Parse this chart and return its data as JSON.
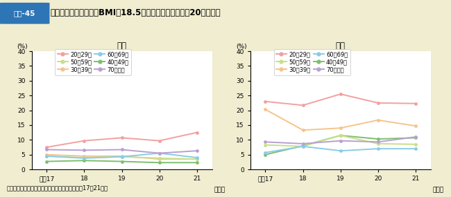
{
  "title_box": "図表-45",
  "title_text": "痩身（低体重）の者（BMI＜18.5）の割合の年次推移（20歳以上）",
  "source": "資料：厧生労働省『国民健康・栄養調査』（平成17～21年）",
  "x_labels": [
    "平成17",
    "18",
    "19",
    "20",
    "21"
  ],
  "male_title": "男性",
  "female_title": "女性",
  "age_groups": [
    "20～29歳",
    "30～39歳",
    "40～49歳",
    "50～59歳",
    "60～69歳",
    "70歳以上"
  ],
  "legend_col1": [
    "20～29歳",
    "30～39歳",
    "40～49歳"
  ],
  "legend_col2": [
    "50～59歳",
    "60～69歳",
    "70歳以上"
  ],
  "male_data": {
    "20～29歳": [
      7.5,
      9.7,
      10.7,
      9.7,
      12.5
    ],
    "30～39歳": [
      5.0,
      4.5,
      4.5,
      3.5,
      3.5
    ],
    "40～49歳": [
      2.7,
      3.0,
      2.7,
      2.3,
      2.3
    ],
    "50～59歳": [
      4.5,
      4.0,
      4.3,
      3.8,
      3.5
    ],
    "60～69歳": [
      4.5,
      3.8,
      4.3,
      5.5,
      4.0
    ],
    "70歳以上": [
      6.7,
      6.5,
      6.7,
      5.5,
      6.3
    ]
  },
  "female_data": {
    "20～29歳": [
      23.0,
      21.7,
      25.5,
      22.5,
      22.3
    ],
    "30～39歳": [
      20.3,
      13.3,
      14.0,
      16.7,
      14.7
    ],
    "40～49歳": [
      5.0,
      8.0,
      11.5,
      10.3,
      10.7
    ],
    "50～59歳": [
      8.3,
      7.8,
      11.5,
      8.7,
      8.5
    ],
    "60～69歳": [
      5.7,
      7.8,
      6.3,
      7.0,
      7.0
    ],
    "70歳以上": [
      9.3,
      8.7,
      9.7,
      9.3,
      11.0
    ]
  },
  "colors": {
    "20～29歳": "#F2A0A0",
    "30～39歳": "#F5C48A",
    "40～49歳": "#7DBF6E",
    "50～59歳": "#C8E08A",
    "60～69歳": "#88CCE8",
    "70歳以上": "#B8A0D0"
  },
  "ylim": [
    0,
    40
  ],
  "yticks": [
    0,
    5,
    10,
    15,
    20,
    25,
    30,
    35,
    40
  ],
  "background_color": "#F0EDD0",
  "plot_bg_color": "#FFFFFF",
  "title_bar_bg": "#FFFFFF",
  "title_box_bg": "#2E75B6",
  "header_line_color": "#B0C8D8"
}
